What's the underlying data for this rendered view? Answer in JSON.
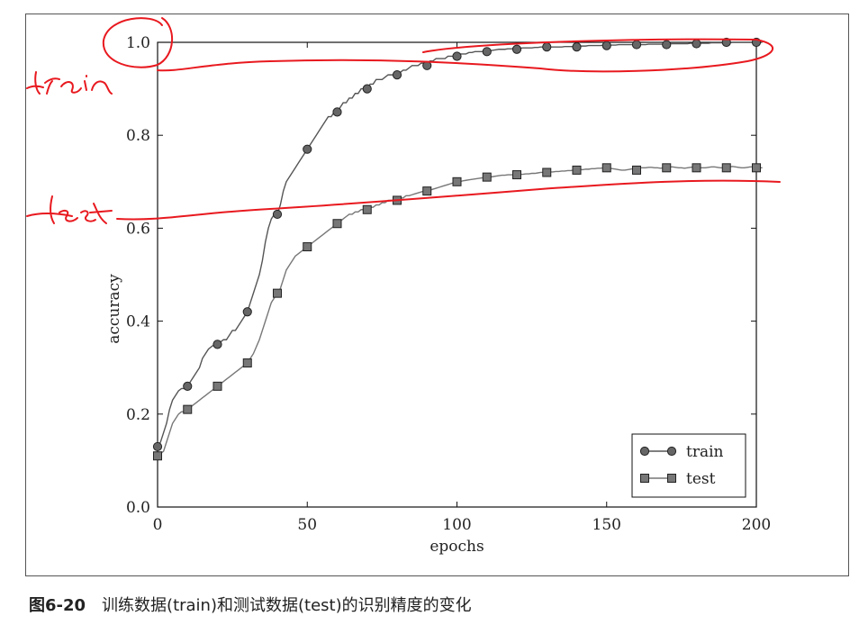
{
  "caption": {
    "figure_number": "图6-20",
    "text": "训练数据(train)和测试数据(test)的识别精度的变化"
  },
  "annotations": {
    "train_handwritten": "train",
    "test_handwritten": "test",
    "ink_color": "#e8191f"
  },
  "chart_data": {
    "type": "line",
    "title": "",
    "xlabel": "epochs",
    "ylabel": "accuracy",
    "xlim": [
      0,
      200
    ],
    "ylim": [
      0.0,
      1.0
    ],
    "x_ticks": [
      "0",
      "50",
      "100",
      "150",
      "200"
    ],
    "y_ticks": [
      "0.0",
      "0.2",
      "0.4",
      "0.6",
      "0.8",
      "1.0"
    ],
    "grid": false,
    "legend_position": "bottom-right",
    "series": [
      {
        "name": "train",
        "marker": "circle",
        "line_color": "#555555",
        "marker_color": "#666666",
        "x": [
          0,
          10,
          20,
          30,
          40,
          50,
          60,
          70,
          80,
          90,
          100,
          110,
          120,
          130,
          140,
          150,
          160,
          170,
          180,
          190,
          200
        ],
        "values": [
          0.13,
          0.26,
          0.35,
          0.42,
          0.63,
          0.77,
          0.85,
          0.9,
          0.93,
          0.95,
          0.97,
          0.98,
          0.985,
          0.99,
          0.99,
          0.993,
          0.995,
          0.995,
          0.997,
          1.0,
          1.0
        ],
        "dense_values": [
          0.13,
          0.14,
          0.16,
          0.18,
          0.21,
          0.23,
          0.24,
          0.25,
          0.255,
          0.255,
          0.26,
          0.27,
          0.28,
          0.29,
          0.3,
          0.32,
          0.33,
          0.34,
          0.345,
          0.35,
          0.35,
          0.355,
          0.36,
          0.36,
          0.37,
          0.38,
          0.38,
          0.39,
          0.4,
          0.41,
          0.42,
          0.44,
          0.46,
          0.48,
          0.5,
          0.53,
          0.57,
          0.6,
          0.62,
          0.63,
          0.63,
          0.65,
          0.68,
          0.7,
          0.71,
          0.72,
          0.73,
          0.74,
          0.75,
          0.76,
          0.77,
          0.78,
          0.79,
          0.8,
          0.81,
          0.82,
          0.83,
          0.84,
          0.84,
          0.85,
          0.85,
          0.86,
          0.87,
          0.87,
          0.88,
          0.88,
          0.89,
          0.89,
          0.9,
          0.9,
          0.9,
          0.91,
          0.91,
          0.92,
          0.92,
          0.92,
          0.925,
          0.93,
          0.93,
          0.93,
          0.93,
          0.935,
          0.94,
          0.94,
          0.945,
          0.95,
          0.95,
          0.95,
          0.955,
          0.955,
          0.955,
          0.96,
          0.96,
          0.965,
          0.965,
          0.965,
          0.965,
          0.97,
          0.97,
          0.97,
          0.97,
          0.975,
          0.975,
          0.975,
          0.978,
          0.978,
          0.98,
          0.98,
          0.98,
          0.98,
          0.98,
          0.982,
          0.983,
          0.984,
          0.985,
          0.985,
          0.985,
          0.986,
          0.986,
          0.986,
          0.987,
          0.987,
          0.988,
          0.988,
          0.988,
          0.988,
          0.989,
          0.989,
          0.99,
          0.99,
          0.99,
          0.99,
          0.99,
          0.99,
          0.99,
          0.99,
          0.991,
          0.991,
          0.991,
          0.991,
          0.992,
          0.992,
          0.992,
          0.992,
          0.993,
          0.993,
          0.993,
          0.993,
          0.993,
          0.994,
          0.994,
          0.994,
          0.994,
          0.994,
          0.995,
          0.995,
          0.995,
          0.995,
          0.995,
          0.995,
          0.995,
          0.995,
          0.995,
          0.995,
          0.996,
          0.996,
          0.996,
          0.996,
          0.996,
          0.996,
          0.996,
          0.997,
          0.997,
          0.997,
          0.997,
          0.997,
          0.997,
          0.997,
          0.998,
          0.998,
          0.998,
          0.998,
          0.998,
          0.998,
          0.998,
          0.999,
          0.999,
          0.999,
          0.999,
          0.999,
          0.999,
          0.999,
          1.0,
          1.0,
          1.0,
          1.0,
          1.0,
          1.0,
          1.0,
          1.0,
          1.0,
          1.0,
          1.0
        ]
      },
      {
        "name": "test",
        "marker": "square",
        "line_color": "#777777",
        "marker_color": "#777777",
        "x": [
          0,
          10,
          20,
          30,
          40,
          50,
          60,
          70,
          80,
          90,
          100,
          110,
          120,
          130,
          140,
          150,
          160,
          170,
          180,
          190,
          200
        ],
        "values": [
          0.11,
          0.21,
          0.26,
          0.31,
          0.46,
          0.56,
          0.61,
          0.64,
          0.66,
          0.68,
          0.7,
          0.71,
          0.715,
          0.72,
          0.725,
          0.73,
          0.725,
          0.73,
          0.73,
          0.73,
          0.73
        ],
        "dense_values": [
          0.11,
          0.115,
          0.12,
          0.14,
          0.16,
          0.18,
          0.19,
          0.2,
          0.205,
          0.205,
          0.21,
          0.215,
          0.22,
          0.225,
          0.23,
          0.235,
          0.24,
          0.245,
          0.25,
          0.255,
          0.26,
          0.265,
          0.27,
          0.275,
          0.28,
          0.285,
          0.29,
          0.295,
          0.3,
          0.305,
          0.31,
          0.32,
          0.33,
          0.345,
          0.36,
          0.38,
          0.4,
          0.42,
          0.44,
          0.45,
          0.46,
          0.47,
          0.49,
          0.51,
          0.52,
          0.53,
          0.54,
          0.545,
          0.55,
          0.555,
          0.56,
          0.565,
          0.57,
          0.575,
          0.58,
          0.585,
          0.59,
          0.595,
          0.6,
          0.605,
          0.61,
          0.615,
          0.62,
          0.625,
          0.63,
          0.63,
          0.635,
          0.635,
          0.64,
          0.64,
          0.64,
          0.645,
          0.645,
          0.65,
          0.65,
          0.655,
          0.655,
          0.66,
          0.66,
          0.66,
          0.66,
          0.665,
          0.665,
          0.67,
          0.67,
          0.672,
          0.674,
          0.676,
          0.678,
          0.68,
          0.68,
          0.682,
          0.684,
          0.686,
          0.688,
          0.69,
          0.692,
          0.694,
          0.696,
          0.698,
          0.7,
          0.7,
          0.702,
          0.703,
          0.704,
          0.705,
          0.706,
          0.707,
          0.708,
          0.709,
          0.71,
          0.71,
          0.711,
          0.712,
          0.713,
          0.714,
          0.714,
          0.715,
          0.715,
          0.715,
          0.715,
          0.716,
          0.716,
          0.717,
          0.717,
          0.718,
          0.718,
          0.719,
          0.72,
          0.72,
          0.72,
          0.721,
          0.721,
          0.722,
          0.722,
          0.723,
          0.723,
          0.724,
          0.724,
          0.725,
          0.725,
          0.726,
          0.726,
          0.727,
          0.727,
          0.728,
          0.728,
          0.729,
          0.729,
          0.73,
          0.73,
          0.729,
          0.728,
          0.727,
          0.726,
          0.725,
          0.725,
          0.726,
          0.727,
          0.728,
          0.729,
          0.73,
          0.73,
          0.73,
          0.731,
          0.731,
          0.73,
          0.73,
          0.729,
          0.73,
          0.731,
          0.732,
          0.732,
          0.731,
          0.73,
          0.73,
          0.729,
          0.73,
          0.731,
          0.732,
          0.731,
          0.73,
          0.73,
          0.73,
          0.731,
          0.732,
          0.732,
          0.731,
          0.73,
          0.73,
          0.731,
          0.732,
          0.733,
          0.732,
          0.731,
          0.73,
          0.73,
          0.731,
          0.732,
          0.732,
          0.731,
          0.73,
          0.73
        ]
      }
    ]
  }
}
